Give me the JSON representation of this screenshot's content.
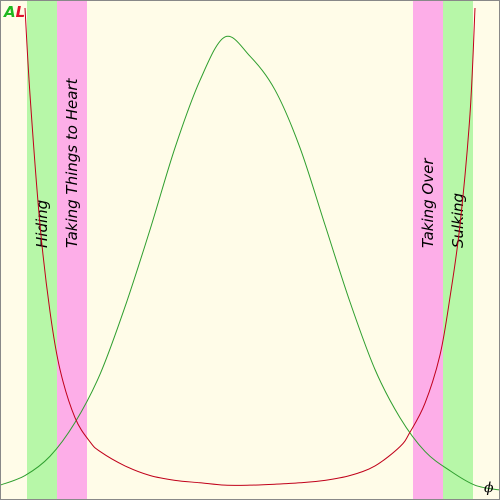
{
  "chart_data": {
    "type": "line",
    "title": "",
    "xlabel": "ϕ",
    "ylabel_parts": [
      "A",
      "L"
    ],
    "xlim": [
      0,
      1
    ],
    "ylim": [
      0,
      1
    ],
    "grid": false,
    "colors": {
      "background": "#fffce8",
      "border": "#888888",
      "green_band": "#b7f7a8",
      "pink_band": "#fdaee8",
      "A_color": "#1fb81f",
      "L_color": "#e0102a",
      "A_line": "#2e9e2e",
      "L_line": "#c0001a"
    },
    "bands": [
      {
        "label": "Hiding",
        "x0": 0.054,
        "x1": 0.114,
        "color": "#b7f7a8"
      },
      {
        "label": "Taking Things to Heart",
        "x0": 0.114,
        "x1": 0.174,
        "color": "#fdaee8"
      },
      {
        "label": "Taking Over",
        "x0": 0.826,
        "x1": 0.886,
        "color": "#fdaee8"
      },
      {
        "label": "Sulking",
        "x0": 0.886,
        "x1": 0.946,
        "color": "#b7f7a8"
      }
    ],
    "series": [
      {
        "key": "A",
        "x": [
          0.0,
          0.05,
          0.1,
          0.15,
          0.2,
          0.25,
          0.3,
          0.35,
          0.4,
          0.45,
          0.5,
          0.55,
          0.6,
          0.65,
          0.7,
          0.75,
          0.8,
          0.85,
          0.9,
          0.95,
          1.0
        ],
        "y": [
          0.01,
          0.03,
          0.07,
          0.14,
          0.24,
          0.38,
          0.54,
          0.71,
          0.85,
          0.94,
          0.9,
          0.83,
          0.71,
          0.55,
          0.39,
          0.25,
          0.15,
          0.08,
          0.04,
          0.01,
          0.0
        ]
      },
      {
        "key": "L",
        "x": [
          0.05,
          0.06,
          0.08,
          0.1,
          0.12,
          0.15,
          0.18,
          0.2,
          0.25,
          0.3,
          0.35,
          0.4,
          0.45,
          0.5,
          0.55,
          0.6,
          0.65,
          0.7,
          0.75,
          0.8,
          0.82,
          0.85,
          0.88,
          0.9,
          0.92,
          0.94,
          0.95
        ],
        "y": [
          1.0,
          0.82,
          0.55,
          0.37,
          0.25,
          0.15,
          0.1,
          0.08,
          0.05,
          0.03,
          0.02,
          0.015,
          0.01,
          0.01,
          0.012,
          0.015,
          0.02,
          0.03,
          0.05,
          0.09,
          0.12,
          0.18,
          0.28,
          0.4,
          0.55,
          0.78,
          1.0
        ]
      }
    ]
  }
}
